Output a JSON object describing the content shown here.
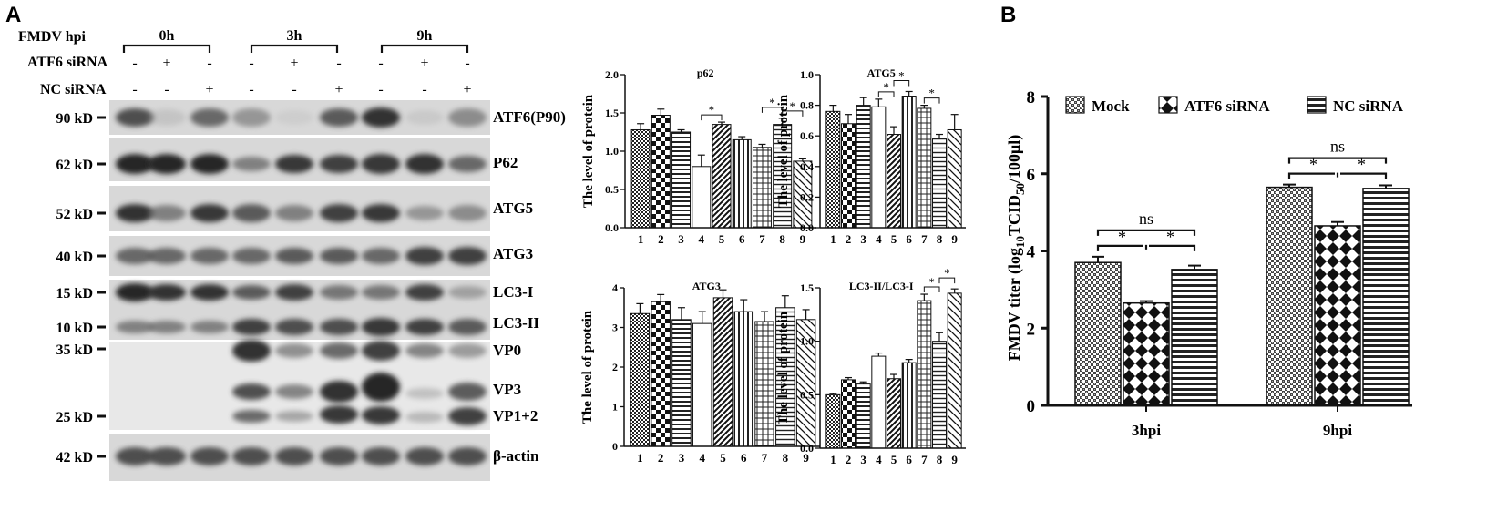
{
  "panel_labels": {
    "a": "A",
    "b": "B"
  },
  "blot": {
    "headers": {
      "hpi": "FMDV hpi",
      "atf6": "ATF6 siRNA",
      "nc": "NC siRNA"
    },
    "timepoints": [
      "0h",
      "3h",
      "9h"
    ],
    "atf6_signs": [
      "-",
      "+",
      "-",
      "-",
      "+",
      "-",
      "-",
      "+",
      "-"
    ],
    "nc_signs": [
      "-",
      "-",
      "+",
      "-",
      "-",
      "+",
      "-",
      "-",
      "+"
    ],
    "markers": [
      "90 kD",
      "62 kD",
      "52 kD",
      "40 kD",
      "15 kD",
      "10 kD",
      "35 kD",
      "25 kD",
      "42 kD"
    ],
    "bands": [
      "ATF6(P90)",
      "P62",
      "ATG5",
      "ATG3",
      "LC3-I",
      "LC3-II",
      "VP0",
      "VP3",
      "VP1+2",
      "β-actin"
    ]
  },
  "chart_data": [
    {
      "type": "bar",
      "title": "p62",
      "ylabel": "The level of protein",
      "categories": [
        "1",
        "2",
        "3",
        "4",
        "5",
        "6",
        "7",
        "8",
        "9"
      ],
      "values": [
        1.28,
        1.47,
        1.25,
        0.8,
        1.35,
        1.15,
        1.05,
        1.35,
        0.87
      ],
      "errors": [
        0.08,
        0.08,
        0.03,
        0.15,
        0.03,
        0.04,
        0.04,
        0.08,
        0.03
      ],
      "ylim": [
        0,
        2.0
      ],
      "yticks": [
        "0.0",
        "0.5",
        "1.0",
        "1.5",
        "2.0"
      ],
      "significance": [
        {
          "from": "4",
          "to": "5",
          "label": "*"
        },
        {
          "from": "7",
          "to": "8",
          "label": "*"
        },
        {
          "from": "8",
          "to": "9",
          "label": "*"
        }
      ]
    },
    {
      "type": "bar",
      "title": "ATG5",
      "ylabel": "The level of protein",
      "categories": [
        "1",
        "2",
        "3",
        "4",
        "5",
        "6",
        "7",
        "8",
        "9"
      ],
      "values": [
        0.76,
        0.68,
        0.8,
        0.79,
        0.61,
        0.86,
        0.78,
        0.58,
        0.64
      ],
      "errors": [
        0.04,
        0.06,
        0.05,
        0.05,
        0.05,
        0.03,
        0.02,
        0.03,
        0.1
      ],
      "ylim": [
        0,
        1.0
      ],
      "yticks": [
        "0.0",
        "0.2",
        "0.4",
        "0.6",
        "0.8",
        "1.0"
      ],
      "significance": [
        {
          "from": "4",
          "to": "5",
          "label": "*"
        },
        {
          "from": "5",
          "to": "6",
          "label": "*"
        },
        {
          "from": "7",
          "to": "8",
          "label": "*"
        }
      ]
    },
    {
      "type": "bar",
      "title": "ATG3",
      "ylabel": "The level of protein",
      "categories": [
        "1",
        "2",
        "3",
        "4",
        "5",
        "6",
        "7",
        "8",
        "9"
      ],
      "values": [
        3.35,
        3.65,
        3.2,
        3.1,
        3.75,
        3.4,
        3.15,
        3.5,
        3.2
      ],
      "errors": [
        0.25,
        0.18,
        0.3,
        0.3,
        0.2,
        0.3,
        0.25,
        0.3,
        0.25
      ],
      "ylim": [
        0,
        4
      ],
      "yticks": [
        "0",
        "1",
        "2",
        "3",
        "4"
      ],
      "significance": []
    },
    {
      "type": "bar",
      "title": "LC3-II/LC3-I",
      "ylabel": "The level of protein",
      "categories": [
        "1",
        "2",
        "3",
        "4",
        "5",
        "6",
        "7",
        "8",
        "9"
      ],
      "values": [
        0.5,
        0.64,
        0.6,
        0.86,
        0.65,
        0.8,
        1.38,
        1.0,
        1.45
      ],
      "errors": [
        0.01,
        0.02,
        0.02,
        0.03,
        0.04,
        0.03,
        0.06,
        0.08,
        0.04
      ],
      "ylim": [
        0,
        1.5
      ],
      "yticks": [
        "0.0",
        "0.5",
        "1.0",
        "1.5"
      ],
      "significance": [
        {
          "from": "7",
          "to": "8",
          "label": "*"
        },
        {
          "from": "8",
          "to": "9",
          "label": "*"
        }
      ]
    },
    {
      "type": "bar",
      "title": "",
      "ylabel": "FMDV titer (log10TCID50/100μl)",
      "ylabel_parts": {
        "a": "FMDV titer (log",
        "sub1": "10",
        "b": "TCID",
        "sub2": "50",
        "c": "/100μl)"
      },
      "categories": [
        "3hpi",
        "9hpi"
      ],
      "series": [
        {
          "name": "Mock",
          "values": [
            3.7,
            5.65
          ],
          "errors": [
            0.15,
            0.07
          ]
        },
        {
          "name": "ATF6 siRNA",
          "values": [
            2.65,
            4.65
          ],
          "errors": [
            0.05,
            0.1
          ]
        },
        {
          "name": "NC siRNA",
          "values": [
            3.52,
            5.62
          ],
          "errors": [
            0.1,
            0.08
          ]
        }
      ],
      "ylim": [
        0,
        8
      ],
      "yticks": [
        "0",
        "2",
        "4",
        "6",
        "8"
      ],
      "significance_labels": {
        "star": "*",
        "ns": "ns"
      }
    }
  ]
}
